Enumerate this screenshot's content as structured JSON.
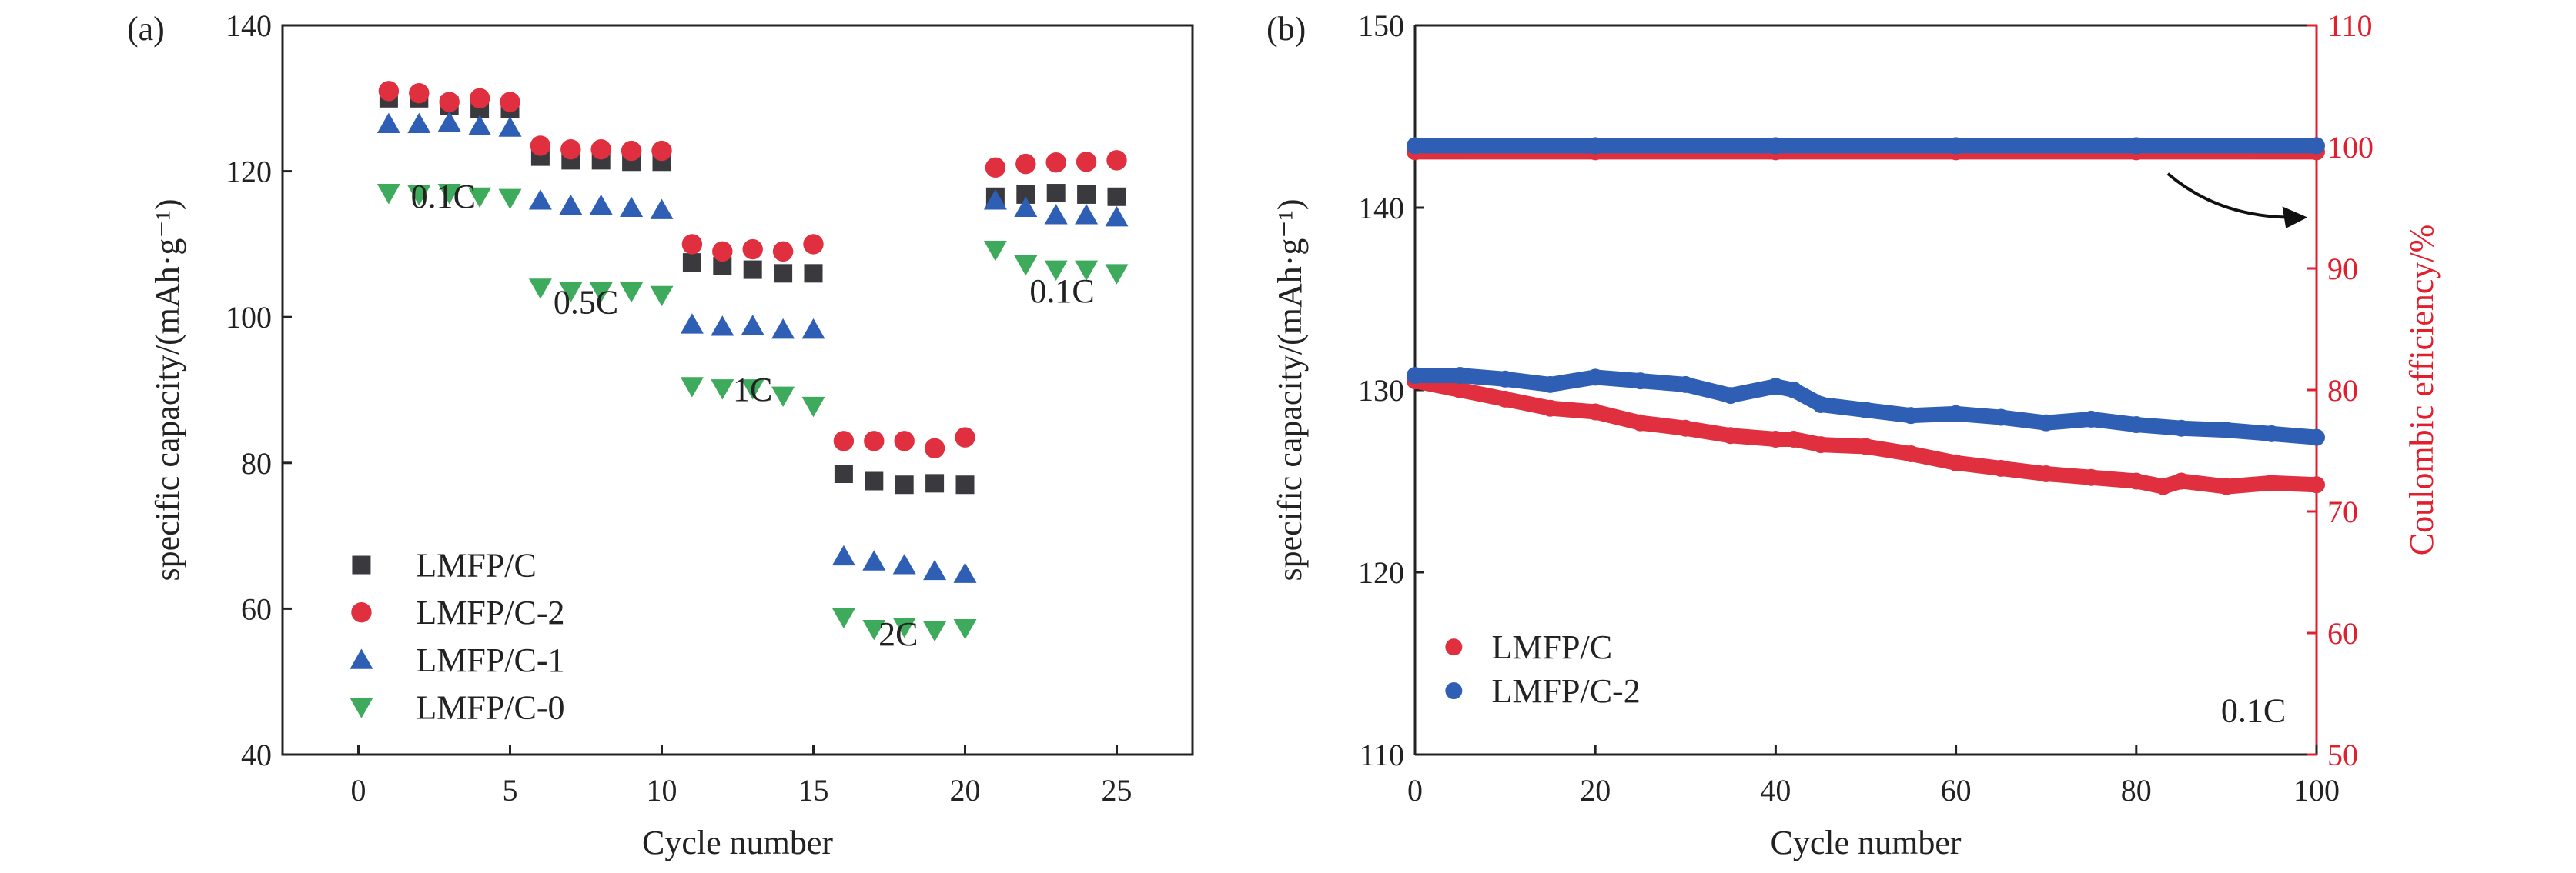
{
  "chart_data": [
    {
      "panel_label": "(a)",
      "type": "scatter",
      "xlabel": "Cycle number",
      "ylabel": "specific capacity/(mAh·g⁻¹)",
      "xlim": [
        -2.5,
        27.5
      ],
      "ylim": [
        40,
        140
      ],
      "xticks": [
        0,
        5,
        10,
        15,
        20,
        25
      ],
      "yticks": [
        40,
        60,
        80,
        100,
        120,
        140
      ],
      "grid": false,
      "legend_position": "bottom-left",
      "x": [
        1,
        2,
        3,
        4,
        5,
        6,
        7,
        8,
        9,
        10,
        11,
        12,
        13,
        14,
        15,
        16,
        17,
        18,
        19,
        20,
        21,
        22,
        23,
        24,
        25
      ],
      "series": [
        {
          "name": "LMFP/C",
          "marker": "square",
          "color": "#3a3a3e",
          "values": [
            130,
            130,
            129,
            128.5,
            128.5,
            122,
            121.5,
            121.5,
            121.3,
            121.3,
            107.5,
            107,
            106.5,
            106,
            106,
            78.5,
            77.5,
            77,
            77.2,
            77,
            116.5,
            116.8,
            117,
            116.8,
            116.5
          ]
        },
        {
          "name": "LMFP/C-2",
          "marker": "circle",
          "color": "#e0303f",
          "values": [
            131,
            130.7,
            129.5,
            130,
            129.5,
            123.5,
            123,
            123,
            122.8,
            122.8,
            110,
            109,
            109.3,
            109,
            110,
            83,
            83,
            83,
            82,
            83.5,
            120.5,
            121,
            121.2,
            121.3,
            121.5
          ]
        },
        {
          "name": "LMFP/C-1",
          "marker": "triangle-up",
          "color": "#2f5fb5",
          "values": [
            126.5,
            126.5,
            126.7,
            126.2,
            126,
            116,
            115.3,
            115.3,
            115,
            114.7,
            99,
            98.7,
            98.8,
            98.3,
            98.3,
            67.2,
            66.5,
            66,
            65.2,
            64.8,
            116,
            115,
            114,
            114,
            113.7
          ]
        },
        {
          "name": "LMFP/C-0",
          "marker": "triangle-down",
          "color": "#3daa5c",
          "values": [
            117,
            116.8,
            117,
            116.5,
            116.3,
            104,
            103.5,
            103.5,
            103.5,
            103,
            90.5,
            90.2,
            90.2,
            89.2,
            87.8,
            58.8,
            57.2,
            57.5,
            57,
            57.3,
            109.2,
            107.2,
            106.5,
            106.5,
            106
          ]
        }
      ],
      "annotations": [
        {
          "text": "0.1C",
          "x": 2.8,
          "y": 115
        },
        {
          "text": "0.5C",
          "x": 7.5,
          "y": 100.5
        },
        {
          "text": "1C",
          "x": 13,
          "y": 88.5
        },
        {
          "text": "2C",
          "x": 17.8,
          "y": 55
        },
        {
          "text": "0.1C",
          "x": 23.2,
          "y": 102
        }
      ]
    },
    {
      "panel_label": "(b)",
      "type": "scatter",
      "xlabel": "Cycle number",
      "ylabel": "specific capacity/(mAh·g⁻¹)",
      "ylabel_right": "Coulombic efficiency/%",
      "xlim": [
        0,
        100
      ],
      "ylim": [
        110,
        150
      ],
      "ylim_right": [
        50,
        110
      ],
      "xticks": [
        0,
        20,
        40,
        60,
        80,
        100
      ],
      "yticks": [
        110,
        120,
        130,
        140,
        150
      ],
      "yticks_right": [
        50,
        60,
        70,
        80,
        90,
        100,
        110
      ],
      "right_axis_color": "#e0202e",
      "grid": false,
      "legend_position": "bottom-left",
      "series": [
        {
          "name": "LMFP/C",
          "axis": "left",
          "color": "#e0303f",
          "x": [
            0,
            5,
            10,
            15,
            20,
            25,
            30,
            35,
            40,
            42,
            45,
            50,
            55,
            60,
            65,
            70,
            75,
            80,
            83,
            85,
            90,
            95,
            100
          ],
          "values": [
            130.5,
            130,
            129.5,
            129,
            128.8,
            128.2,
            127.9,
            127.5,
            127.3,
            127.3,
            127,
            126.9,
            126.5,
            126,
            125.7,
            125.4,
            125.2,
            125,
            124.7,
            125,
            124.7,
            124.9,
            124.8
          ]
        },
        {
          "name": "LMFP/C-2",
          "axis": "left",
          "color": "#2f5fb5",
          "x": [
            0,
            5,
            10,
            15,
            20,
            25,
            30,
            35,
            40,
            42,
            45,
            50,
            55,
            60,
            65,
            70,
            75,
            80,
            85,
            90,
            95,
            100
          ],
          "values": [
            130.8,
            130.8,
            130.6,
            130.3,
            130.7,
            130.5,
            130.3,
            129.7,
            130.2,
            130,
            129.2,
            128.9,
            128.6,
            128.7,
            128.5,
            128.2,
            128.4,
            128.1,
            127.9,
            127.8,
            127.6,
            127.4
          ]
        },
        {
          "name": "LMFP/C CE",
          "axis": "right",
          "color": "#e0303f",
          "x": [
            0,
            20,
            40,
            60,
            80,
            100
          ],
          "values": [
            99.6,
            99.6,
            99.6,
            99.6,
            99.6,
            99.6
          ]
        },
        {
          "name": "LMFP/C-2 CE",
          "axis": "right",
          "color": "#2f5fb5",
          "x": [
            0,
            20,
            40,
            60,
            80,
            100
          ],
          "values": [
            100.1,
            100.1,
            100.1,
            100.1,
            100.1,
            100.1
          ]
        }
      ],
      "legend": [
        "LMFP/C",
        "LMFP/C-2"
      ],
      "annotations": [
        {
          "text": "0.1C",
          "x": 93,
          "y": 111.8
        }
      ]
    }
  ]
}
